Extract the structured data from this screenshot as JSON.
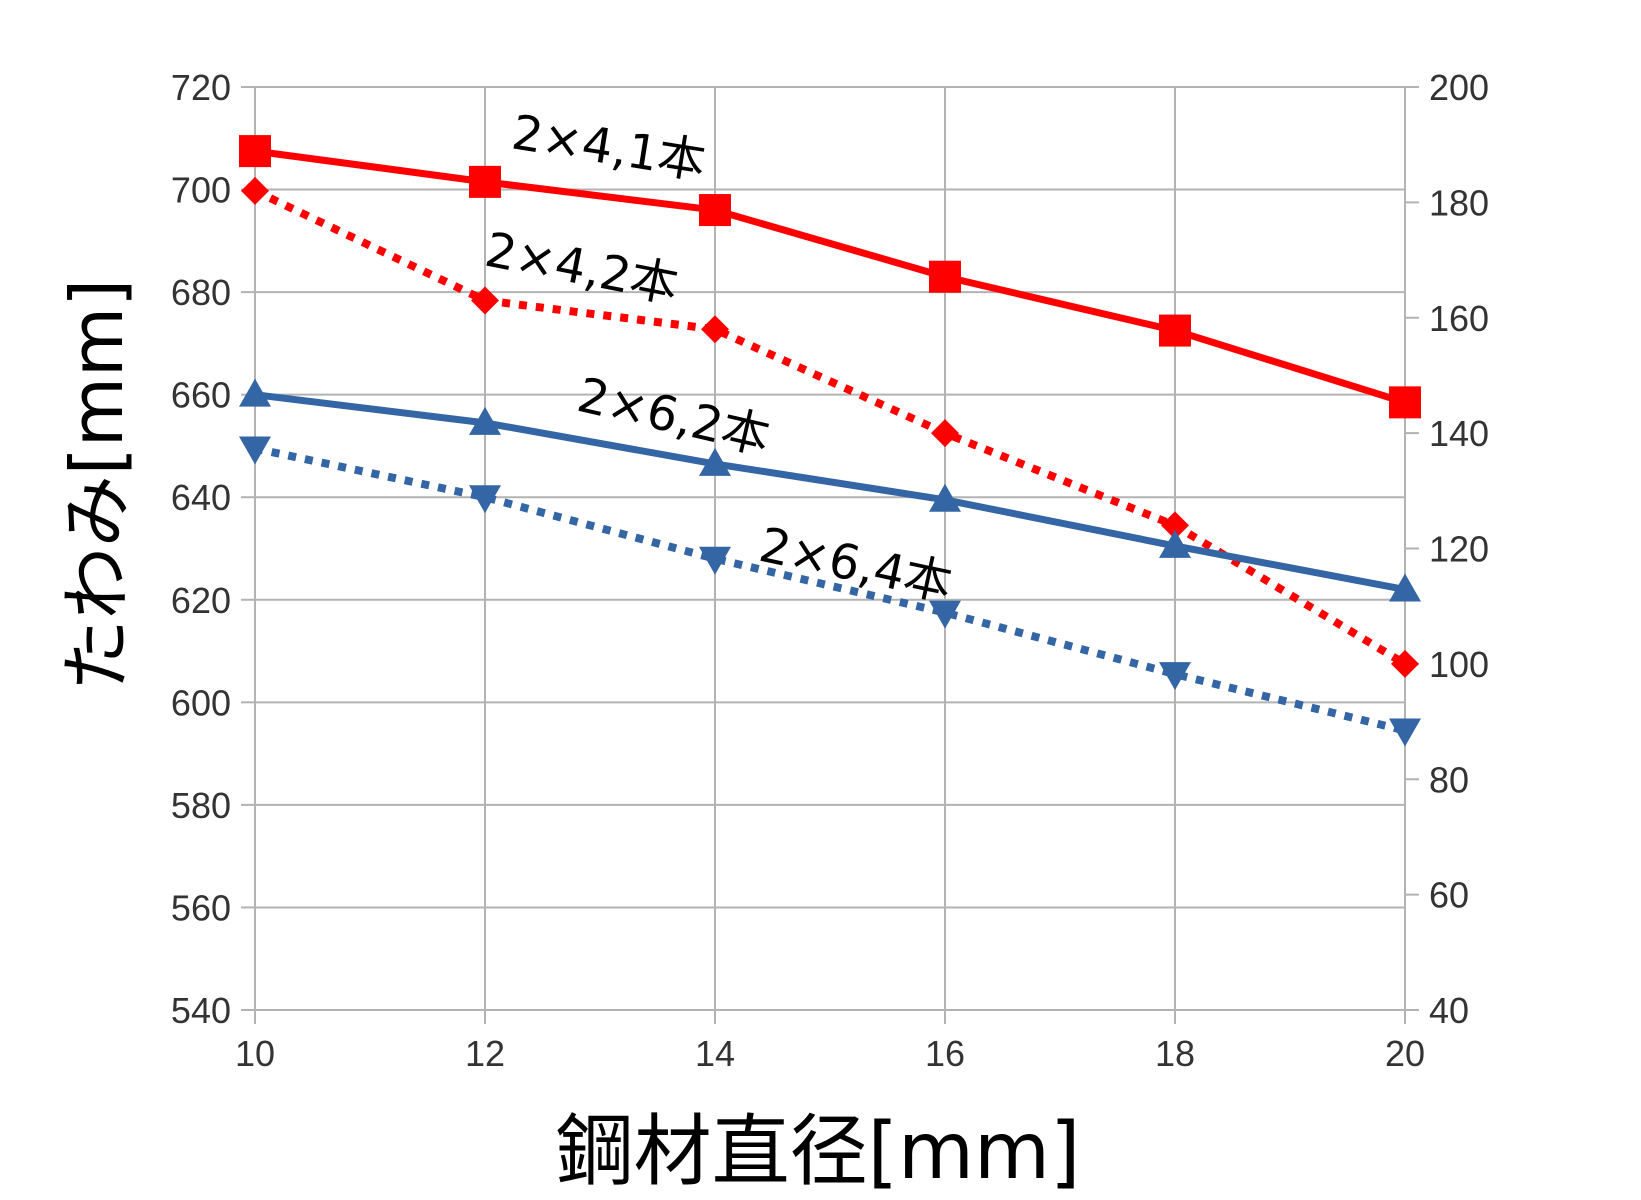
{
  "chart_data": {
    "type": "line",
    "xlabel": "鋼材直径[mm]",
    "ylabel": "たわみ[mm]",
    "x": [
      10,
      12,
      14,
      16,
      18,
      20
    ],
    "x_ticks": [
      "10",
      "12",
      "14",
      "16",
      "18",
      "20"
    ],
    "xlim": [
      10,
      20
    ],
    "ylim": [
      540,
      720
    ],
    "y_ticks": [
      "540",
      "560",
      "580",
      "600",
      "620",
      "640",
      "660",
      "680",
      "700",
      "720"
    ],
    "y2lim": [
      40,
      200
    ],
    "y2_ticks": [
      "40",
      "60",
      "80",
      "100",
      "120",
      "140",
      "160",
      "180",
      "200"
    ],
    "grid": true,
    "series": [
      {
        "label": "2×4,1本",
        "axis": "left",
        "values": [
          707.5,
          701.5,
          696,
          683,
          672.5,
          658.5
        ],
        "color": "#ff0000",
        "line": "solid",
        "marker": "square"
      },
      {
        "label": "2×4,2本",
        "axis": "right",
        "values": [
          182,
          163,
          158,
          140,
          124,
          100
        ],
        "color": "#ff0000",
        "line": "dotted",
        "marker": "diamond"
      },
      {
        "label": "2×6,2本",
        "axis": "left",
        "values": [
          660,
          654.5,
          646.5,
          639.5,
          630.5,
          622
        ],
        "color": "#3465a4",
        "line": "solid",
        "marker": "triangle-up"
      },
      {
        "label": "2×6,4本",
        "axis": "left",
        "values": [
          649.5,
          640,
          628,
          617.5,
          605.5,
          594.5
        ],
        "color": "#3465a4",
        "line": "dotted",
        "marker": "triangle-down"
      }
    ]
  }
}
